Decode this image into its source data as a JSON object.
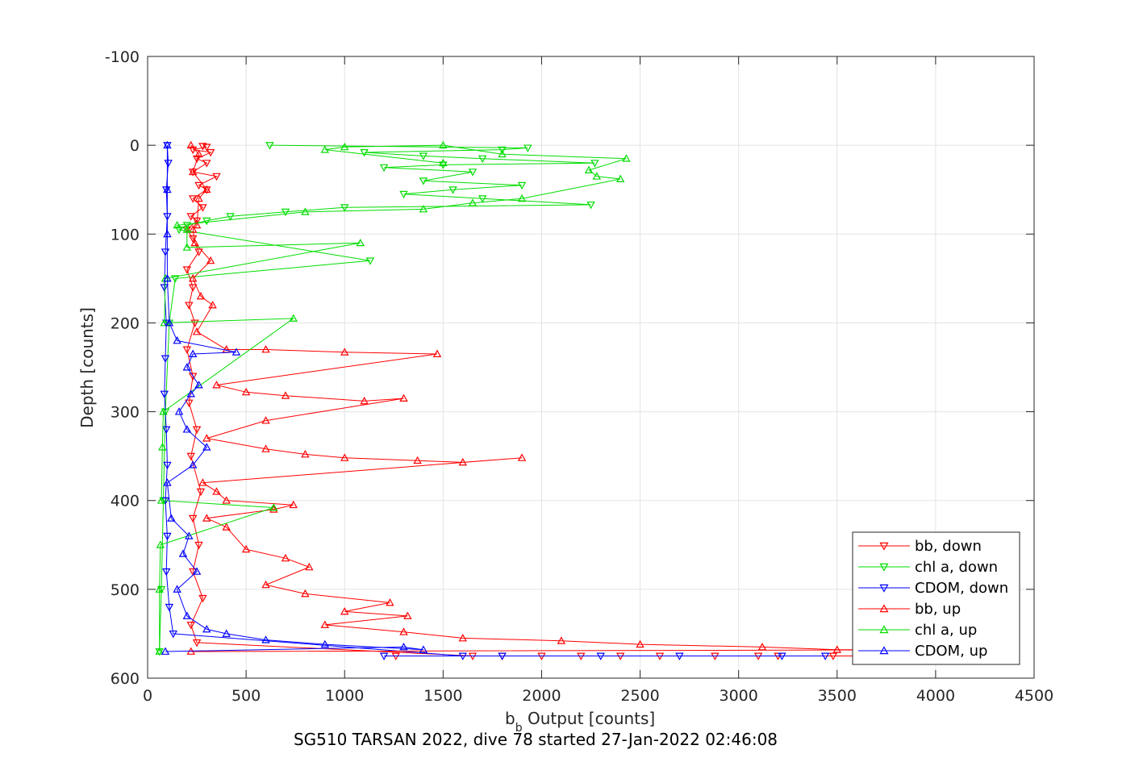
{
  "chart_data": {
    "type": "line",
    "title": "SG510 TARSAN 2022, dive 78 started 27-Jan-2022 02:46:08",
    "xlabel_main": "b",
    "xlabel_sub": "b",
    "xlabel_rest": " Output [counts]",
    "ylabel": "Depth [counts]",
    "xlim": [
      0,
      4500
    ],
    "ylim": [
      -100,
      600
    ],
    "y_reversed": true,
    "grid": true,
    "legend_position": "bottom-right",
    "x_ticks": [
      "0",
      "500",
      "1000",
      "1500",
      "2000",
      "2500",
      "3000",
      "3500",
      "4000",
      "4500"
    ],
    "y_ticks": [
      "-100",
      "0",
      "100",
      "200",
      "300",
      "400",
      "500",
      "600"
    ],
    "series": [
      {
        "name": "bb, down",
        "color": "#ff0000",
        "marker": "triangle-down",
        "points": [
          [
            280,
            1
          ],
          [
            300,
            2
          ],
          [
            230,
            5
          ],
          [
            320,
            8
          ],
          [
            250,
            15
          ],
          [
            300,
            20
          ],
          [
            230,
            30
          ],
          [
            350,
            35
          ],
          [
            260,
            45
          ],
          [
            300,
            50
          ],
          [
            230,
            60
          ],
          [
            280,
            70
          ],
          [
            220,
            80
          ],
          [
            250,
            85
          ],
          [
            200,
            95
          ],
          [
            230,
            105
          ],
          [
            260,
            120
          ],
          [
            200,
            140
          ],
          [
            230,
            160
          ],
          [
            210,
            180
          ],
          [
            240,
            200
          ],
          [
            200,
            230
          ],
          [
            230,
            260
          ],
          [
            210,
            290
          ],
          [
            250,
            320
          ],
          [
            220,
            350
          ],
          [
            270,
            390
          ],
          [
            230,
            420
          ],
          [
            260,
            450
          ],
          [
            230,
            480
          ],
          [
            280,
            510
          ],
          [
            220,
            540
          ],
          [
            250,
            560
          ],
          [
            1650,
            575
          ],
          [
            2200,
            575
          ],
          [
            3100,
            575
          ],
          [
            3480,
            575
          ],
          [
            2600,
            575
          ],
          [
            1260,
            575
          ],
          [
            2000,
            575
          ],
          [
            3720,
            575
          ],
          [
            2400,
            575
          ],
          [
            1800,
            575
          ],
          [
            2880,
            575
          ],
          [
            3200,
            575
          ]
        ]
      },
      {
        "name": "chl a, down",
        "color": "#00dd00",
        "marker": "triangle-down",
        "points": [
          [
            620,
            0
          ],
          [
            1930,
            3
          ],
          [
            1800,
            5
          ],
          [
            1100,
            8
          ],
          [
            1400,
            12
          ],
          [
            1700,
            15
          ],
          [
            2270,
            20
          ],
          [
            1500,
            22
          ],
          [
            1200,
            25
          ],
          [
            1650,
            30
          ],
          [
            1400,
            40
          ],
          [
            1900,
            45
          ],
          [
            1550,
            50
          ],
          [
            1300,
            55
          ],
          [
            1700,
            60
          ],
          [
            2250,
            67
          ],
          [
            1000,
            70
          ],
          [
            700,
            75
          ],
          [
            420,
            80
          ],
          [
            300,
            85
          ],
          [
            200,
            90
          ],
          [
            160,
            95
          ],
          [
            1130,
            130
          ],
          [
            140,
            150
          ],
          [
            110,
            200
          ],
          [
            90,
            300
          ],
          [
            80,
            400
          ],
          [
            70,
            500
          ],
          [
            60,
            570
          ]
        ]
      },
      {
        "name": "CDOM, down",
        "color": "#0000ff",
        "marker": "triangle-down",
        "points": [
          [
            100,
            0
          ],
          [
            105,
            20
          ],
          [
            95,
            50
          ],
          [
            100,
            80
          ],
          [
            90,
            120
          ],
          [
            85,
            160
          ],
          [
            95,
            200
          ],
          [
            90,
            240
          ],
          [
            85,
            280
          ],
          [
            95,
            320
          ],
          [
            100,
            360
          ],
          [
            90,
            400
          ],
          [
            100,
            440
          ],
          [
            95,
            480
          ],
          [
            110,
            520
          ],
          [
            130,
            550
          ],
          [
            1600,
            575
          ],
          [
            3220,
            575
          ],
          [
            3440,
            575
          ],
          [
            1800,
            575
          ],
          [
            2700,
            575
          ],
          [
            2300,
            575
          ],
          [
            1200,
            575
          ]
        ]
      },
      {
        "name": "bb, up",
        "color": "#ff0000",
        "marker": "triangle-up",
        "points": [
          [
            220,
            570
          ],
          [
            4000,
            568
          ],
          [
            3500,
            568
          ],
          [
            3120,
            565
          ],
          [
            2500,
            562
          ],
          [
            2100,
            558
          ],
          [
            1600,
            555
          ],
          [
            1300,
            548
          ],
          [
            900,
            540
          ],
          [
            1320,
            530
          ],
          [
            1000,
            525
          ],
          [
            1230,
            515
          ],
          [
            800,
            505
          ],
          [
            600,
            495
          ],
          [
            820,
            475
          ],
          [
            700,
            465
          ],
          [
            500,
            455
          ],
          [
            400,
            430
          ],
          [
            300,
            420
          ],
          [
            640,
            410
          ],
          [
            740,
            405
          ],
          [
            400,
            400
          ],
          [
            350,
            390
          ],
          [
            280,
            380
          ],
          [
            1900,
            352
          ],
          [
            1600,
            357
          ],
          [
            1370,
            355
          ],
          [
            1000,
            352
          ],
          [
            800,
            348
          ],
          [
            600,
            342
          ],
          [
            300,
            330
          ],
          [
            600,
            310
          ],
          [
            1300,
            285
          ],
          [
            1100,
            288
          ],
          [
            700,
            282
          ],
          [
            500,
            278
          ],
          [
            350,
            270
          ],
          [
            1470,
            235
          ],
          [
            1000,
            233
          ],
          [
            600,
            230
          ],
          [
            400,
            230
          ],
          [
            250,
            210
          ],
          [
            330,
            180
          ],
          [
            270,
            170
          ],
          [
            230,
            150
          ],
          [
            320,
            130
          ],
          [
            240,
            110
          ],
          [
            230,
            95
          ],
          [
            250,
            90
          ],
          [
            260,
            60
          ],
          [
            300,
            50
          ],
          [
            230,
            30
          ],
          [
            260,
            10
          ],
          [
            220,
            0
          ]
        ]
      },
      {
        "name": "chl a, up",
        "color": "#00dd00",
        "marker": "triangle-up",
        "points": [
          [
            60,
            570
          ],
          [
            60,
            500
          ],
          [
            65,
            450
          ],
          [
            640,
            408
          ],
          [
            70,
            400
          ],
          [
            75,
            340
          ],
          [
            80,
            300
          ],
          [
            740,
            195
          ],
          [
            85,
            200
          ],
          [
            90,
            150
          ],
          [
            1080,
            110
          ],
          [
            200,
            115
          ],
          [
            200,
            95
          ],
          [
            150,
            90
          ],
          [
            800,
            75
          ],
          [
            1400,
            72
          ],
          [
            1650,
            65
          ],
          [
            1900,
            60
          ],
          [
            2400,
            38
          ],
          [
            2280,
            35
          ],
          [
            2240,
            28
          ],
          [
            2430,
            15
          ],
          [
            1800,
            10
          ],
          [
            1500,
            0
          ],
          [
            1000,
            2
          ],
          [
            900,
            5
          ],
          [
            1500,
            20
          ]
        ]
      },
      {
        "name": "CDOM, up",
        "color": "#0000ff",
        "marker": "triangle-up",
        "points": [
          [
            90,
            570
          ],
          [
            1300,
            565
          ],
          [
            1400,
            568
          ],
          [
            900,
            562
          ],
          [
            600,
            557
          ],
          [
            400,
            550
          ],
          [
            300,
            545
          ],
          [
            200,
            530
          ],
          [
            150,
            500
          ],
          [
            250,
            480
          ],
          [
            180,
            460
          ],
          [
            210,
            440
          ],
          [
            120,
            420
          ],
          [
            100,
            380
          ],
          [
            230,
            360
          ],
          [
            300,
            340
          ],
          [
            200,
            320
          ],
          [
            160,
            300
          ],
          [
            220,
            280
          ],
          [
            260,
            270
          ],
          [
            200,
            250
          ],
          [
            230,
            235
          ],
          [
            450,
            233
          ],
          [
            150,
            220
          ],
          [
            110,
            200
          ],
          [
            100,
            150
          ],
          [
            100,
            100
          ],
          [
            100,
            50
          ],
          [
            100,
            0
          ]
        ]
      }
    ]
  }
}
